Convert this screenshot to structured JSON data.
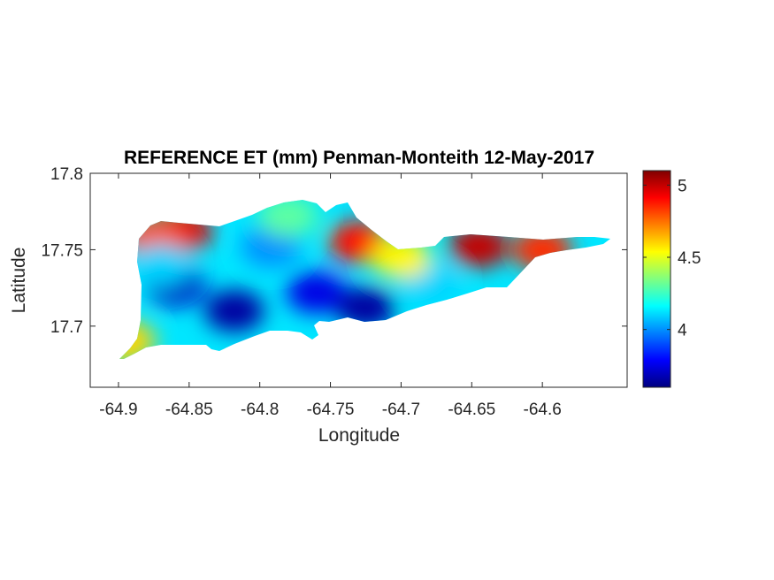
{
  "chart_data": {
    "type": "heatmap",
    "title": "REFERENCE ET (mm) Penman-Monteith 12-May-2017",
    "xlabel": "Longitude",
    "ylabel": "Latitude",
    "xlim": [
      -64.92,
      -64.54
    ],
    "ylim": [
      17.66,
      17.8
    ],
    "x_ticks": [
      -64.9,
      -64.85,
      -64.8,
      -64.75,
      -64.7,
      -64.65,
      -64.6
    ],
    "x_tick_labels": [
      "-64.9",
      "-64.85",
      "-64.8",
      "-64.75",
      "-64.7",
      "-64.65",
      "-64.6"
    ],
    "y_ticks": [
      17.7,
      17.75,
      17.8
    ],
    "y_tick_labels": [
      "17.7",
      "17.75",
      "17.8"
    ],
    "grid": false,
    "colorbar": {
      "colormap": "jet",
      "clim": [
        3.6,
        5.1
      ],
      "ticks": [
        4,
        4.5,
        5
      ],
      "tick_labels": [
        "4",
        "4.5",
        "5"
      ]
    },
    "field_samples": [
      {
        "x": -64.855,
        "y": 17.762,
        "value": 4.95
      },
      {
        "x": -64.875,
        "y": 17.758,
        "value": 4.8
      },
      {
        "x": -64.86,
        "y": 17.727,
        "value": 3.7
      },
      {
        "x": -64.818,
        "y": 17.71,
        "value": 3.65
      },
      {
        "x": -64.792,
        "y": 17.752,
        "value": 4.0
      },
      {
        "x": -64.78,
        "y": 17.772,
        "value": 4.3
      },
      {
        "x": -64.76,
        "y": 17.722,
        "value": 3.75
      },
      {
        "x": -64.73,
        "y": 17.755,
        "value": 4.9
      },
      {
        "x": -64.725,
        "y": 17.712,
        "value": 3.65
      },
      {
        "x": -64.68,
        "y": 17.728,
        "value": 4.1
      },
      {
        "x": -64.645,
        "y": 17.752,
        "value": 5.0
      },
      {
        "x": -64.6,
        "y": 17.75,
        "value": 4.85
      },
      {
        "x": -64.895,
        "y": 17.69,
        "value": 4.6
      },
      {
        "x": -64.87,
        "y": 17.74,
        "value": 4.1
      },
      {
        "x": -64.7,
        "y": 17.745,
        "value": 4.55
      }
    ]
  }
}
